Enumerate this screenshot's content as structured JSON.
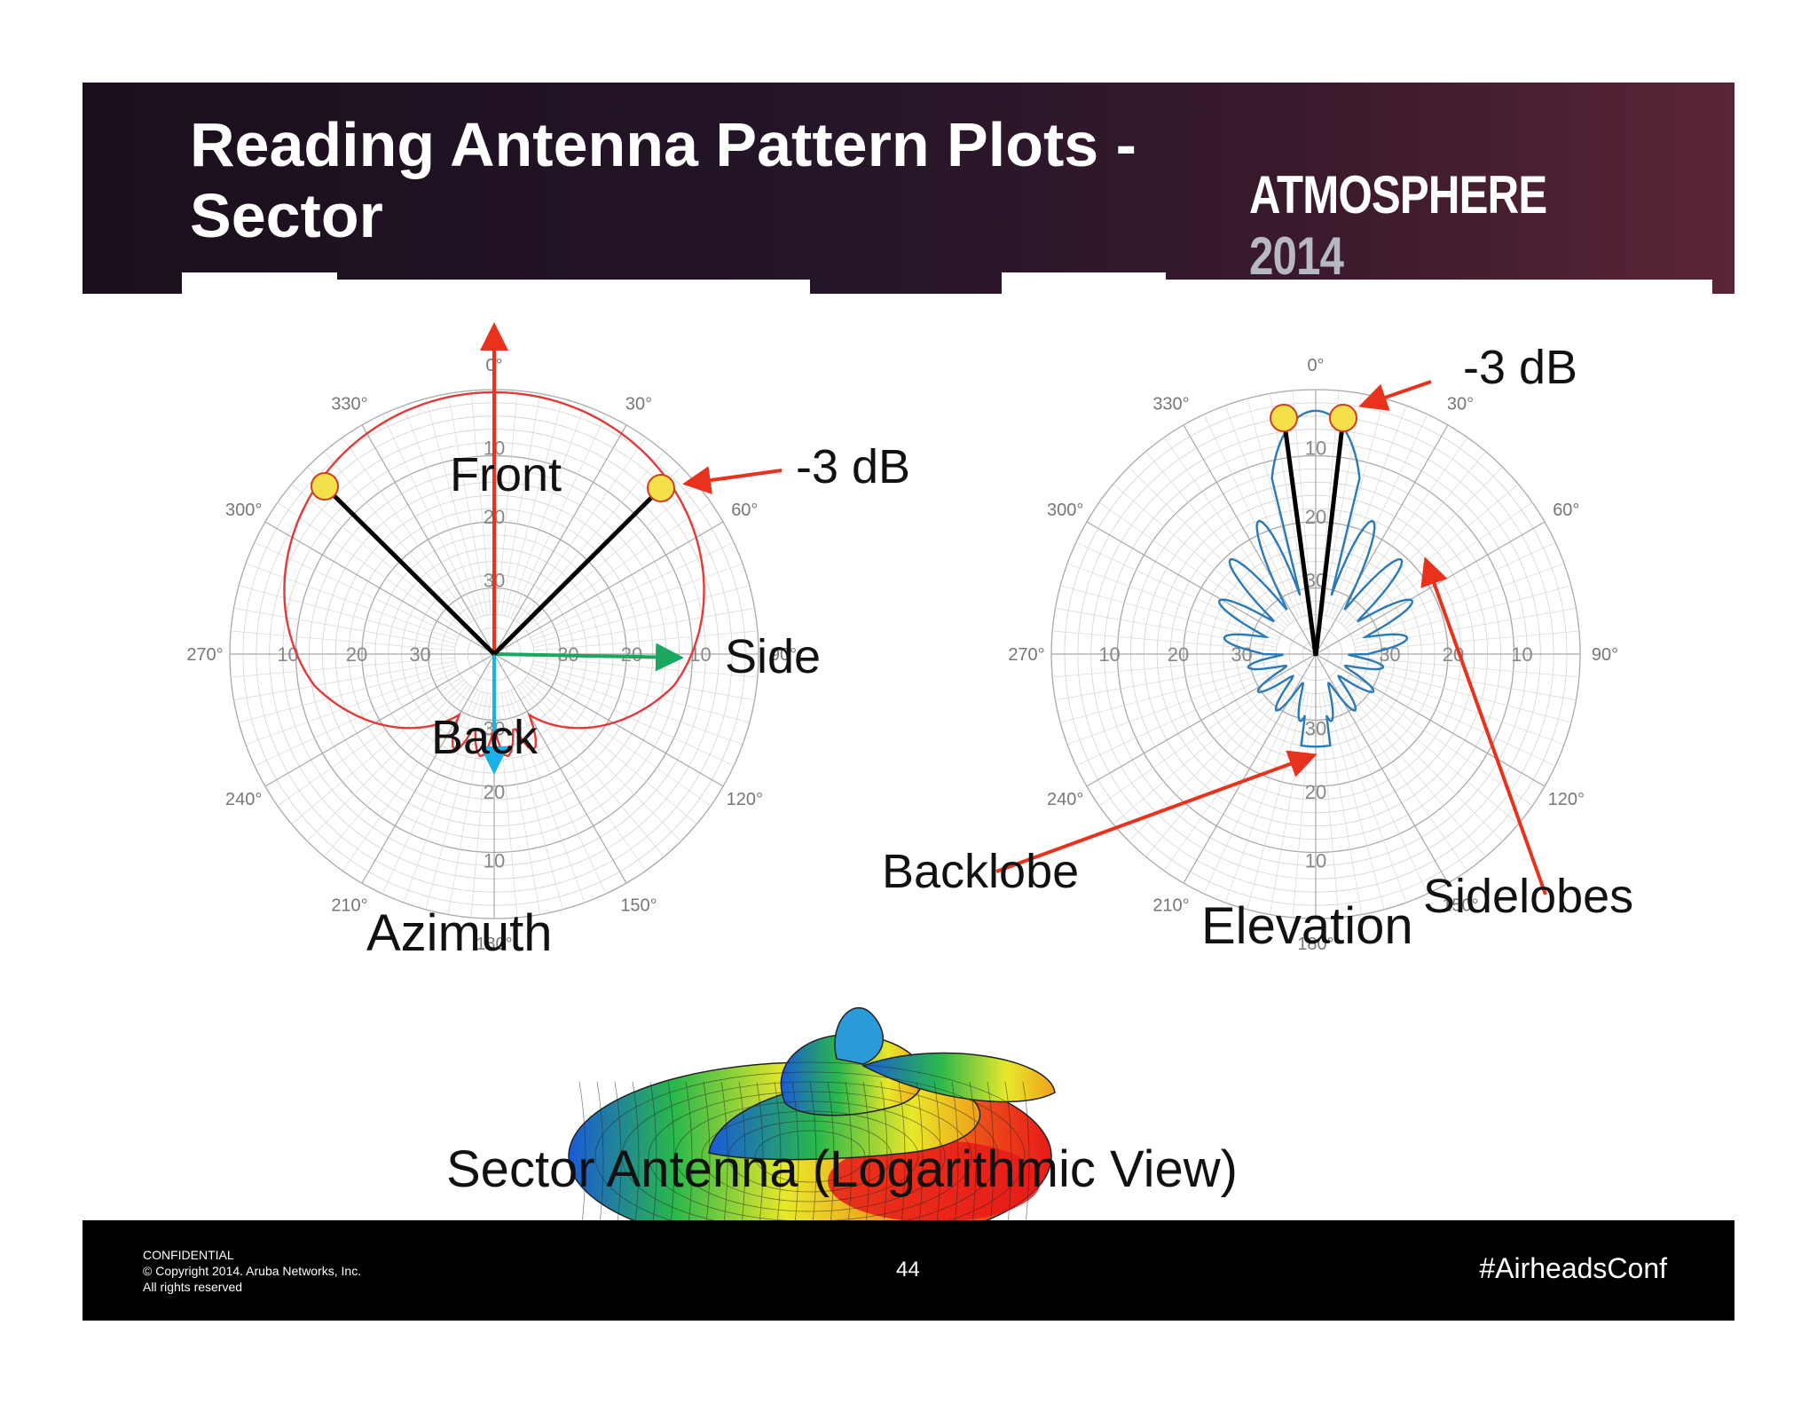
{
  "slide": {
    "title_line1": "Reading Antenna Pattern Plots -",
    "title_line2": "Sector",
    "brand_word": "ATMOSPHERE",
    "brand_year": "2014"
  },
  "azimuth_plot": {
    "angle_labels": [
      "0°",
      "30°",
      "60°",
      "90°",
      "120°",
      "150°",
      "180°",
      "210°",
      "240°",
      "270°",
      "300°",
      "330°"
    ],
    "ring_labels": [
      "10",
      "20",
      "30"
    ],
    "labels": {
      "front": "Front",
      "side": "Side",
      "back": "Back",
      "minus3db": "-3 dB",
      "caption": "Azimuth"
    }
  },
  "elevation_plot": {
    "angle_labels": [
      "0°",
      "30°",
      "60°",
      "90°",
      "120°",
      "150°",
      "180°",
      "210°",
      "240°",
      "270°",
      "300°",
      "330°"
    ],
    "ring_labels": [
      "10",
      "20",
      "30"
    ],
    "labels": {
      "minus3db": "-3 dB",
      "backlobe": "Backlobe",
      "sidelobes": "Sidelobes",
      "caption": "Elevation"
    }
  },
  "antenna_3d": {
    "caption": "Sector Antenna (Logarithmic View)"
  },
  "footer": {
    "confidential": "CONFIDENTIAL",
    "copyright": "© Copyright 2014. Aruba Networks, Inc.",
    "rights": "All rights reserved",
    "page_number": "44",
    "hashtag": "#AirheadsConf"
  },
  "colors": {
    "azimuth_pattern": "#e03a3a",
    "elevation_pattern": "#2a7ab8",
    "arrow_red": "#e8321e",
    "arrow_green": "#1aa860",
    "arrow_cyan": "#1ab0e8",
    "marker_fill": "#f4e04a"
  }
}
